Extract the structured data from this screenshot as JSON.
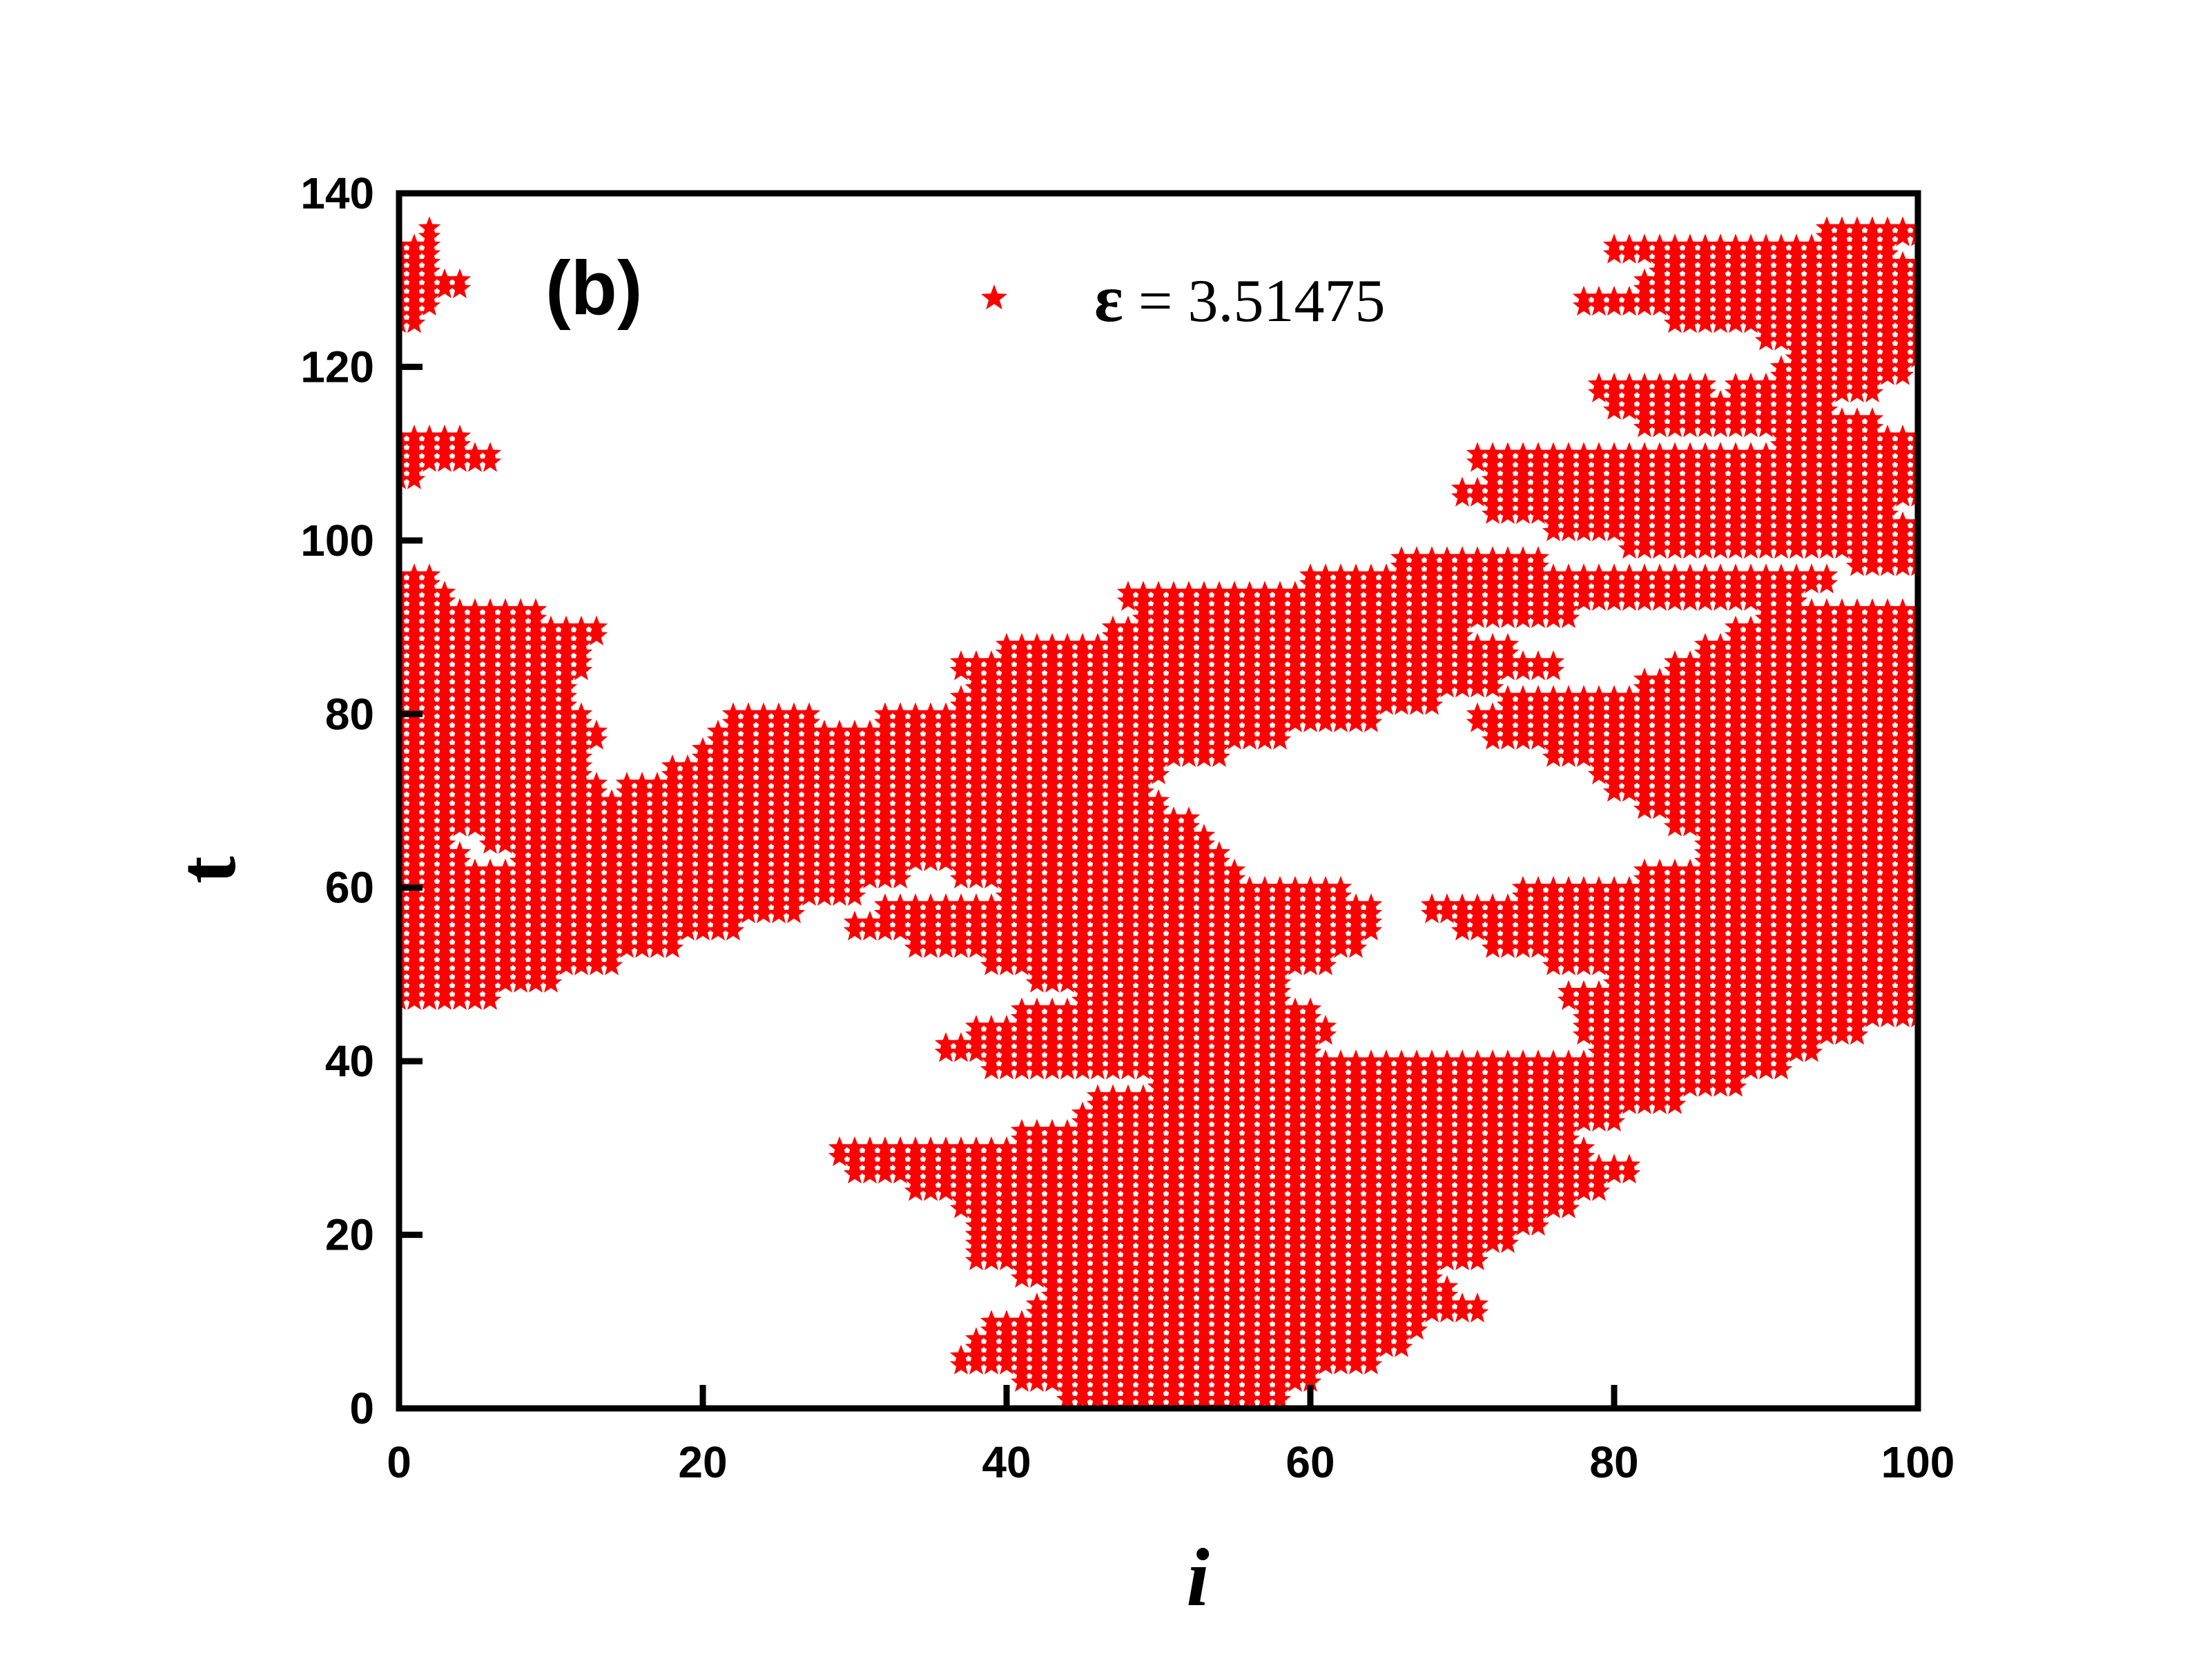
{
  "chart_data": {
    "type": "scatter",
    "marker": "star",
    "marker_color": "#ff0000",
    "xlabel": "i",
    "ylabel": "t",
    "panel_label": "(b)",
    "xlim": [
      0,
      100
    ],
    "ylim": [
      0,
      140
    ],
    "x_ticks": [
      "0",
      "20",
      "40",
      "60",
      "80",
      "100"
    ],
    "y_ticks": [
      "0",
      "20",
      "40",
      "60",
      "80",
      "100",
      "120",
      "140"
    ],
    "legend": {
      "position": "top-center",
      "symbol": "ε",
      "text": " = 3.51475"
    },
    "grid": false,
    "point_spacing": {
      "x": 1,
      "y": 1
    },
    "region_rows_description": "Each row gives, for an integer time t, the horizontal i-intervals (inclusive) filled with markers.",
    "regions": [
      {
        "t": 0,
        "segments": [
          [
            47,
            54
          ]
        ]
      },
      {
        "t": 2,
        "segments": [
          [
            44,
            58
          ]
        ]
      },
      {
        "t": 4,
        "segments": [
          [
            41,
            60
          ]
        ]
      },
      {
        "t": 6,
        "segments": [
          [
            37,
            64
          ]
        ]
      },
      {
        "t": 8,
        "segments": [
          [
            38,
            66
          ]
        ]
      },
      {
        "t": 10,
        "segments": [
          [
            39,
            67
          ]
        ]
      },
      {
        "t": 12,
        "segments": [
          [
            42,
            71
          ]
        ]
      },
      {
        "t": 14,
        "segments": [
          [
            43,
            69
          ]
        ]
      },
      {
        "t": 16,
        "segments": [
          [
            41,
            68
          ]
        ]
      },
      {
        "t": 18,
        "segments": [
          [
            38,
            71
          ]
        ]
      },
      {
        "t": 20,
        "segments": [
          [
            38,
            73
          ]
        ]
      },
      {
        "t": 22,
        "segments": [
          [
            38,
            75
          ]
        ]
      },
      {
        "t": 24,
        "segments": [
          [
            37,
            77
          ]
        ]
      },
      {
        "t": 26,
        "segments": [
          [
            34,
            79
          ]
        ]
      },
      {
        "t": 28,
        "segments": [
          [
            30,
            81
          ]
        ]
      },
      {
        "t": 30,
        "segments": [
          [
            29,
            78
          ]
        ]
      },
      {
        "t": 32,
        "segments": [
          [
            41,
            77
          ]
        ]
      },
      {
        "t": 34,
        "segments": [
          [
            45,
            80
          ]
        ]
      },
      {
        "t": 36,
        "segments": [
          [
            46,
            84
          ]
        ]
      },
      {
        "t": 38,
        "segments": [
          [
            50,
            88
          ]
        ]
      },
      {
        "t": 40,
        "segments": [
          [
            39,
            57
          ],
          [
            58,
            91
          ]
        ]
      },
      {
        "t": 42,
        "segments": [
          [
            36,
            60
          ],
          [
            79,
            93
          ]
        ]
      },
      {
        "t": 44,
        "segments": [
          [
            38,
            61
          ],
          [
            78,
            96
          ]
        ]
      },
      {
        "t": 46,
        "segments": [
          [
            41,
            60
          ],
          [
            78,
            100
          ]
        ]
      },
      {
        "t": 47,
        "segments": [
          [
            0,
            3
          ]
        ]
      },
      {
        "t": 48,
        "segments": [
          [
            0,
            6
          ],
          [
            45,
            58
          ],
          [
            77,
            100
          ]
        ]
      },
      {
        "t": 50,
        "segments": [
          [
            0,
            10
          ],
          [
            42,
            58
          ],
          [
            80,
            100
          ]
        ]
      },
      {
        "t": 52,
        "segments": [
          [
            0,
            14
          ],
          [
            39,
            61
          ],
          [
            76,
            100
          ]
        ]
      },
      {
        "t": 54,
        "segments": [
          [
            0,
            18
          ],
          [
            34,
            63
          ],
          [
            72,
            100
          ]
        ]
      },
      {
        "t": 56,
        "segments": [
          [
            0,
            22
          ],
          [
            30,
            64
          ],
          [
            70,
            100
          ]
        ]
      },
      {
        "t": 58,
        "segments": [
          [
            0,
            26
          ],
          [
            32,
            64
          ],
          [
            68,
            100
          ]
        ]
      },
      {
        "t": 60,
        "segments": [
          [
            0,
            30
          ],
          [
            40,
            62
          ],
          [
            74,
            100
          ]
        ]
      },
      {
        "t": 62,
        "segments": [
          [
            0,
            33
          ],
          [
            37,
            55
          ],
          [
            82,
            100
          ]
        ]
      },
      {
        "t": 64,
        "segments": [
          [
            0,
            4
          ],
          [
            8,
            54
          ],
          [
            86,
            100
          ]
        ]
      },
      {
        "t": 66,
        "segments": [
          [
            0,
            3
          ],
          [
            6,
            53
          ],
          [
            86,
            100
          ]
        ]
      },
      {
        "t": 68,
        "segments": [
          [
            0,
            52
          ],
          [
            84,
            100
          ]
        ]
      },
      {
        "t": 70,
        "segments": [
          [
            0,
            50
          ],
          [
            82,
            100
          ]
        ]
      },
      {
        "t": 72,
        "segments": [
          [
            0,
            13
          ],
          [
            15,
            49
          ],
          [
            80,
            100
          ]
        ]
      },
      {
        "t": 74,
        "segments": [
          [
            0,
            12
          ],
          [
            18,
            50
          ],
          [
            79,
            100
          ]
        ]
      },
      {
        "t": 76,
        "segments": [
          [
            0,
            12
          ],
          [
            20,
            54
          ],
          [
            76,
            100
          ]
        ]
      },
      {
        "t": 78,
        "segments": [
          [
            0,
            13
          ],
          [
            21,
            58
          ],
          [
            72,
            100
          ]
        ]
      },
      {
        "t": 80,
        "segments": [
          [
            0,
            12
          ],
          [
            22,
            27
          ],
          [
            32,
            64
          ],
          [
            71,
            100
          ]
        ]
      },
      {
        "t": 82,
        "segments": [
          [
            0,
            11
          ],
          [
            37,
            68
          ],
          [
            73,
            100
          ]
        ]
      },
      {
        "t": 84,
        "segments": [
          [
            0,
            11
          ],
          [
            38,
            72
          ],
          [
            82,
            100
          ]
        ]
      },
      {
        "t": 86,
        "segments": [
          [
            0,
            12
          ],
          [
            37,
            76
          ],
          [
            84,
            100
          ]
        ]
      },
      {
        "t": 88,
        "segments": [
          [
            0,
            12
          ],
          [
            40,
            73
          ],
          [
            86,
            100
          ]
        ]
      },
      {
        "t": 90,
        "segments": [
          [
            0,
            13
          ],
          [
            47,
            70
          ],
          [
            88,
            100
          ]
        ]
      },
      {
        "t": 92,
        "segments": [
          [
            0,
            9
          ],
          [
            49,
            77
          ],
          [
            90,
            100
          ]
        ]
      },
      {
        "t": 94,
        "segments": [
          [
            0,
            3
          ],
          [
            48,
            92
          ]
        ]
      },
      {
        "t": 96,
        "segments": [
          [
            0,
            2
          ],
          [
            60,
            94
          ]
        ]
      },
      {
        "t": 98,
        "segments": [
          [
            66,
            75
          ],
          [
            96,
            100
          ]
        ]
      },
      {
        "t": 100,
        "segments": [
          [
            81,
            100
          ]
        ]
      },
      {
        "t": 102,
        "segments": [
          [
            76,
            100
          ]
        ]
      },
      {
        "t": 104,
        "segments": [
          [
            72,
            98
          ]
        ]
      },
      {
        "t": 106,
        "segments": [
          [
            70,
            100
          ]
        ]
      },
      {
        "t": 108,
        "segments": [
          [
            0,
            1
          ],
          [
            72,
            100
          ]
        ]
      },
      {
        "t": 110,
        "segments": [
          [
            0,
            6
          ],
          [
            71,
            100
          ]
        ]
      },
      {
        "t": 112,
        "segments": [
          [
            0,
            4
          ],
          [
            91,
            100
          ]
        ]
      },
      {
        "t": 114,
        "segments": [
          [
            82,
            97
          ]
        ]
      },
      {
        "t": 116,
        "segments": [
          [
            80,
            94
          ]
        ]
      },
      {
        "t": 118,
        "segments": [
          [
            79,
            86
          ],
          [
            88,
            97
          ]
        ]
      },
      {
        "t": 120,
        "segments": [
          [
            91,
            99
          ]
        ]
      },
      {
        "t": 122,
        "segments": [
          [
            92,
            100
          ]
        ]
      },
      {
        "t": 124,
        "segments": [
          [
            90,
            100
          ]
        ]
      },
      {
        "t": 126,
        "segments": [
          [
            0,
            1
          ],
          [
            84,
            100
          ]
        ]
      },
      {
        "t": 128,
        "segments": [
          [
            0,
            2
          ],
          [
            78,
            100
          ]
        ]
      },
      {
        "t": 130,
        "segments": [
          [
            0,
            4
          ],
          [
            82,
            100
          ]
        ]
      },
      {
        "t": 132,
        "segments": [
          [
            0,
            2
          ],
          [
            83,
            100
          ]
        ]
      },
      {
        "t": 134,
        "segments": [
          [
            0,
            2
          ],
          [
            80,
            98
          ]
        ]
      },
      {
        "t": 136,
        "segments": [
          [
            2,
            2
          ],
          [
            94,
            100
          ]
        ]
      }
    ]
  }
}
